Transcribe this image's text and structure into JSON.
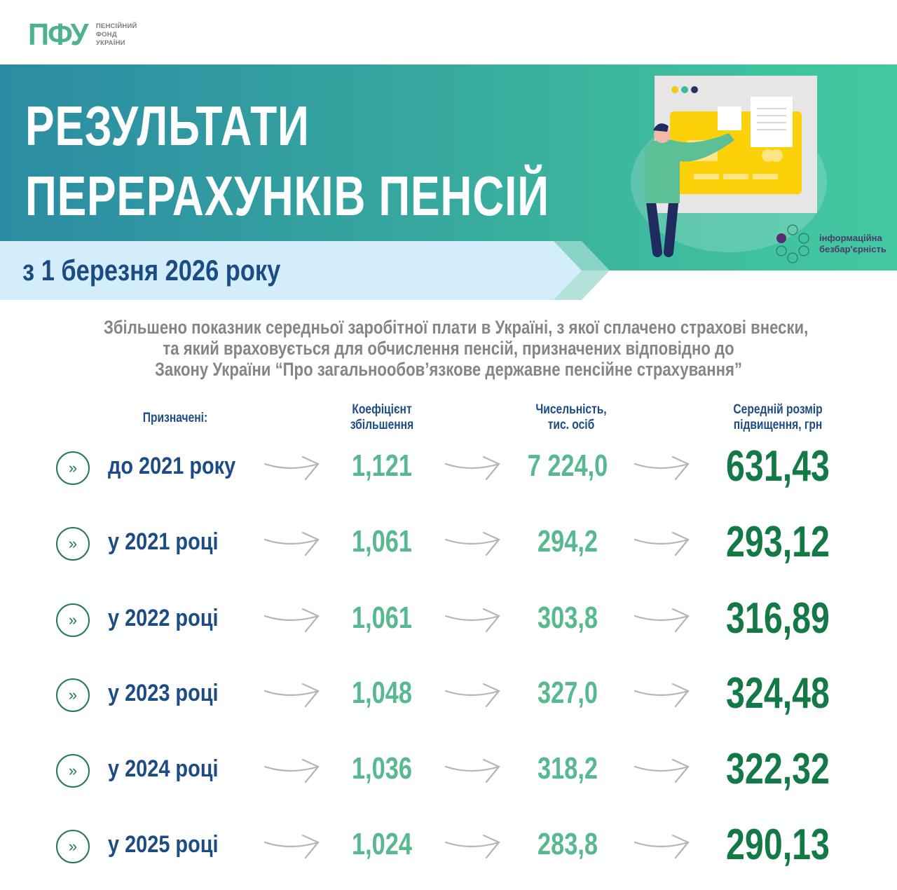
{
  "logo": {
    "mark": "ПФУ",
    "line1": "ПЕНСІЙНИЙ",
    "line2": "ФОНД",
    "line3": "УКРАЇНИ"
  },
  "banner": {
    "title_line1": "РЕЗУЛЬТАТИ",
    "title_line2": "ПЕРЕРАХУНКІВ ПЕНСІЙ",
    "subtitle": "з 1 березня 2026 року",
    "accessibility_line1": "інформаційна",
    "accessibility_line2": "безбар'єрність"
  },
  "intro": {
    "line1": "Збільшено показник середньої заробітної плати в Україні, з якої сплачено страхові внески,",
    "line2": "та який враховується для обчислення пенсій, призначених відповідно до",
    "line3": "Закону України “Про загальнообов’язкове державне пенсійне страхування”"
  },
  "table": {
    "headers": {
      "assigned": "Призначені:",
      "coef": "Коефіцієнт збільшення",
      "coef_l1": "Коефіцієнт",
      "coef_l2": "збільшення",
      "count_l1": "Чисельність,",
      "count_l2": "тис. осіб",
      "avg_l1": "Середній розмір",
      "avg_l2": "підвищення, грн"
    },
    "rows": [
      {
        "label": "до 2021 року",
        "coef": "1,121",
        "count": "7 224,0",
        "avg": "631,43"
      },
      {
        "label": "у 2021 році",
        "coef": "1,061",
        "count": "294,2",
        "avg": "293,12"
      },
      {
        "label": "у 2022 році",
        "coef": "1,061",
        "count": "303,8",
        "avg": "316,89"
      },
      {
        "label": "у 2023 році",
        "coef": "1,048",
        "count": "327,0",
        "avg": "324,48"
      },
      {
        "label": "у 2024 році",
        "coef": "1,036",
        "count": "318,2",
        "avg": "322,32"
      },
      {
        "label": "у 2025 році",
        "coef": "1,024",
        "count": "283,8",
        "avg": "290,13"
      }
    ]
  },
  "icons": {
    "row_bullet": "double-chevron-right-circle-icon",
    "row_arrow": "curved-arrow-right-icon"
  },
  "colors": {
    "brand_green": "#4db38a",
    "banner_start": "#2b8ca3",
    "banner_end": "#43c9a1",
    "ribbon": "#d3eefa",
    "navy_text": "#1d4c84",
    "light_green_values": "#56b98f",
    "dark_green_values": "#137a47",
    "gray_text": "#858585"
  }
}
